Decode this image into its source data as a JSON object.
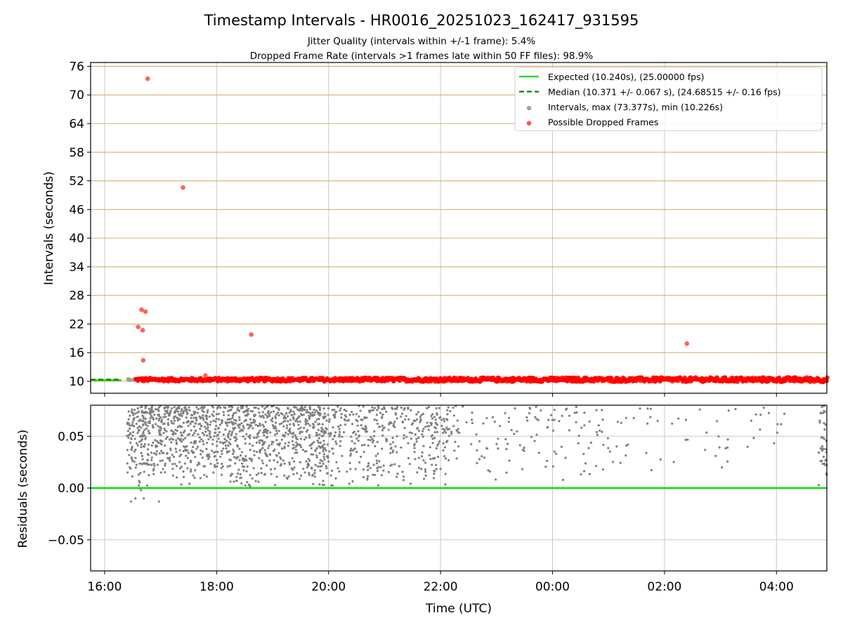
{
  "figure": {
    "title": "Timestamp Intervals - HR0016_20251023_162417_931595",
    "subtitle_jitter": "Jitter Quality (intervals within +/-1 frame): 5.4%",
    "subtitle_dropped": "Dropped Frame Rate (intervals >1 frames late within 50 FF files): 98.9%"
  },
  "colors": {
    "expected": "#00e000",
    "median": "#008000",
    "intervals": "#808080",
    "dropped": "#ff0000",
    "hgrid": "#d2b469",
    "vgrid": "#c8c8c8"
  },
  "chart_data": [
    {
      "type": "scatter",
      "ylabel": "Intervals (seconds)",
      "xlabel": "",
      "x_unit": "hours since 16:00 UTC",
      "xlim": [
        -0.25,
        12.9
      ],
      "ylim": [
        7.5,
        76.8
      ],
      "yticks": [
        10,
        16,
        22,
        28,
        34,
        40,
        46,
        52,
        58,
        64,
        70,
        76
      ],
      "ytick_labels": [
        "10",
        "16",
        "22",
        "28",
        "34",
        "40",
        "46",
        "52",
        "58",
        "64",
        "70",
        "76"
      ],
      "legend_position": "top-right",
      "legend": [
        {
          "label": "Expected (10.240s), (25.00000 fps)",
          "kind": "solid-line",
          "color": "#00e000"
        },
        {
          "label": "Median (10.371 +/- 0.067 s), (24.68515 +/- 0.16 fps)",
          "kind": "dashed-line",
          "color": "#008000"
        },
        {
          "label": "Intervals, max (73.377s), min (10.226s)",
          "kind": "dot",
          "color": "#a0a0a0"
        },
        {
          "label": "Possible Dropped Frames",
          "kind": "dot",
          "color": "#ff5050"
        }
      ],
      "series": [
        {
          "name": "Expected (10.240s), (25.00000 fps)",
          "type": "hline",
          "y": 10.24,
          "x_range": [
            -0.25,
            0.3
          ]
        },
        {
          "name": "Median (10.371 +/- 0.067 s), (24.68515 +/- 0.16 fps)",
          "type": "hline-dashed",
          "y": 10.371,
          "x_range": [
            -0.25,
            0.3
          ]
        },
        {
          "name": "Intervals, max (73.377s), min (10.226s)",
          "type": "scatter",
          "x": [
            0.42,
            0.45,
            0.52
          ],
          "y": [
            10.4,
            10.3,
            10.35
          ]
        },
        {
          "name": "Possible Dropped Frames",
          "type": "scatter",
          "x": [
            0.77,
            0.66,
            0.73,
            0.6,
            0.68,
            0.69,
            1.4,
            1.8,
            2.62,
            10.4
          ],
          "y": [
            73.4,
            25.0,
            24.6,
            21.4,
            20.7,
            14.4,
            50.6,
            11.2,
            19.8,
            17.9
          ],
          "band": {
            "x_range": [
              0.55,
              12.9
            ],
            "y_center": 10.35,
            "y_spread": 0.35,
            "y_spread_late": 0.5
          }
        }
      ]
    },
    {
      "type": "scatter",
      "ylabel": "Residuals (seconds)",
      "xlabel": "Time (UTC)",
      "x_unit": "hours since 16:00 UTC",
      "xlim": [
        -0.25,
        12.9
      ],
      "ylim": [
        -0.08,
        0.08
      ],
      "yticks": [
        0.05,
        0.0,
        -0.05
      ],
      "ytick_labels": [
        "0.05",
        "0.00",
        "−0.05"
      ],
      "xticks": [
        0,
        2,
        4,
        6,
        8,
        10,
        12
      ],
      "xtick_labels": [
        "16:00",
        "18:00",
        "20:00",
        "22:00",
        "00:00",
        "02:00",
        "04:00"
      ],
      "series": [
        {
          "name": "zero-residual",
          "type": "hline",
          "y": 0.0
        },
        {
          "name": "residuals",
          "type": "scatter",
          "density": [
            {
              "x_range": [
                0.4,
                4.0
              ],
              "count": 1200,
              "y_range": [
                0.0,
                0.08
              ]
            },
            {
              "x_range": [
                4.0,
                6.2
              ],
              "count": 380,
              "y_range": [
                0.0,
                0.08
              ]
            },
            {
              "x_range": [
                6.2,
                9.2
              ],
              "count": 130,
              "y_range": [
                0.005,
                0.08
              ]
            },
            {
              "x_range": [
                9.2,
                12.2
              ],
              "count": 50,
              "y_range": [
                0.01,
                0.08
              ]
            },
            {
              "x_range": [
                12.75,
                12.9
              ],
              "count": 40,
              "y_range": [
                0.0,
                0.08
              ]
            }
          ],
          "x": [
            0.47,
            0.55,
            0.7,
            0.97,
            0.65,
            0.62
          ],
          "y": [
            -0.013,
            -0.01,
            -0.01,
            -0.013,
            -0.002,
            0.0
          ]
        }
      ]
    }
  ]
}
